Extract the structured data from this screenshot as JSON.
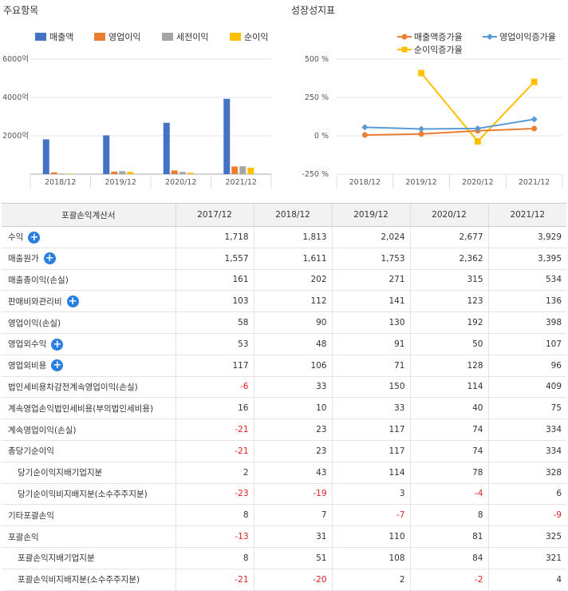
{
  "left_panel": {
    "title": "주요항목",
    "legend": [
      {
        "label": "매출액",
        "color": "#4472c4"
      },
      {
        "label": "영업이익",
        "color": "#ed7d31"
      },
      {
        "label": "세전이익",
        "color": "#a5a5a5"
      },
      {
        "label": "순이익",
        "color": "#ffc000"
      }
    ]
  },
  "right_panel": {
    "title": "성장성지표",
    "legend": [
      {
        "label": "매출액증가율",
        "color": "#ed7d31",
        "marker": "circle"
      },
      {
        "label": "영업이익증가율",
        "color": "#5b9bd5",
        "marker": "diamond"
      },
      {
        "label": "순이익증가율",
        "color": "#ffc000",
        "marker": "square"
      }
    ]
  },
  "chart_data": [
    {
      "type": "bar",
      "categories": [
        "2018/12",
        "2019/12",
        "2020/12",
        "2021/12"
      ],
      "ytick_labels": [
        "6000억",
        "4000억",
        "2000억"
      ],
      "yticks": [
        6000,
        4000,
        2000
      ],
      "ylim": [
        0,
        6000
      ],
      "series": [
        {
          "name": "매출액",
          "values": [
            1813,
            2024,
            2677,
            3929
          ]
        },
        {
          "name": "영업이익",
          "values": [
            90,
            130,
            192,
            398
          ]
        },
        {
          "name": "세전이익",
          "values": [
            33,
            150,
            114,
            409
          ]
        },
        {
          "name": "순이익",
          "values": [
            23,
            117,
            74,
            334
          ]
        }
      ]
    },
    {
      "type": "line",
      "categories": [
        "2018/12",
        "2019/12",
        "2020/12",
        "2021/12"
      ],
      "ytick_labels": [
        "500 %",
        "250 %",
        "0 %",
        "-250 %"
      ],
      "yticks": [
        500,
        250,
        0,
        -250
      ],
      "ylim": [
        -250,
        500
      ],
      "series": [
        {
          "name": "매출액증가율",
          "values": [
            5.5,
            11.6,
            32.3,
            46.8
          ]
        },
        {
          "name": "영업이익증가율",
          "values": [
            55.2,
            44.4,
            47.7,
            107.3
          ]
        },
        {
          "name": "순이익증가율",
          "values": [
            null,
            408.7,
            -36.8,
            351.4
          ]
        }
      ]
    }
  ],
  "table": {
    "headers": [
      "포괄손익계산서",
      "2017/12",
      "2018/12",
      "2019/12",
      "2020/12",
      "2021/12"
    ],
    "rows": [
      {
        "label": "수익",
        "expand": true,
        "sub": false,
        "values": [
          "1,718",
          "1,813",
          "2,024",
          "2,677",
          "3,929"
        ]
      },
      {
        "label": "매출원가",
        "expand": true,
        "sub": false,
        "values": [
          "1,557",
          "1,611",
          "1,753",
          "2,362",
          "3,395"
        ]
      },
      {
        "label": "매출총이익(손실)",
        "expand": false,
        "sub": false,
        "values": [
          "161",
          "202",
          "271",
          "315",
          "534"
        ]
      },
      {
        "label": "판매비와관리비",
        "expand": true,
        "sub": false,
        "values": [
          "103",
          "112",
          "141",
          "123",
          "136"
        ]
      },
      {
        "label": "영업이익(손실)",
        "expand": false,
        "sub": false,
        "values": [
          "58",
          "90",
          "130",
          "192",
          "398"
        ]
      },
      {
        "label": "영업외수익",
        "expand": true,
        "sub": false,
        "values": [
          "53",
          "48",
          "91",
          "50",
          "107"
        ]
      },
      {
        "label": "영업외비용",
        "expand": true,
        "sub": false,
        "values": [
          "117",
          "106",
          "71",
          "128",
          "96"
        ]
      },
      {
        "label": "법인세비용차감전계속영업이익(손실)",
        "expand": false,
        "sub": false,
        "values": [
          "-6",
          "33",
          "150",
          "114",
          "409"
        ]
      },
      {
        "label": "계속영업손익법인세비용(부의법인세비용)",
        "expand": false,
        "sub": false,
        "values": [
          "16",
          "10",
          "33",
          "40",
          "75"
        ]
      },
      {
        "label": "계속영업이익(손실)",
        "expand": false,
        "sub": false,
        "values": [
          "-21",
          "23",
          "117",
          "74",
          "334"
        ]
      },
      {
        "label": "총당기순이익",
        "expand": false,
        "sub": false,
        "values": [
          "-21",
          "23",
          "117",
          "74",
          "334"
        ]
      },
      {
        "label": "당기순이익지배기업지분",
        "expand": false,
        "sub": true,
        "values": [
          "2",
          "43",
          "114",
          "78",
          "328"
        ]
      },
      {
        "label": "당기순이익비지배지분(소수주주지분)",
        "expand": false,
        "sub": true,
        "values": [
          "-23",
          "-19",
          "3",
          "-4",
          "6"
        ]
      },
      {
        "label": "기타포괄손익",
        "expand": false,
        "sub": false,
        "values": [
          "8",
          "7",
          "-7",
          "8",
          "-9"
        ]
      },
      {
        "label": "포괄손익",
        "expand": false,
        "sub": false,
        "values": [
          "-13",
          "31",
          "110",
          "81",
          "325"
        ]
      },
      {
        "label": "포괄손익지배기업지분",
        "expand": false,
        "sub": true,
        "values": [
          "8",
          "51",
          "108",
          "84",
          "321"
        ]
      },
      {
        "label": "포괄손익비지배지분(소수주주지분)",
        "expand": false,
        "sub": true,
        "values": [
          "-21",
          "-20",
          "2",
          "-2",
          "4"
        ]
      }
    ]
  }
}
